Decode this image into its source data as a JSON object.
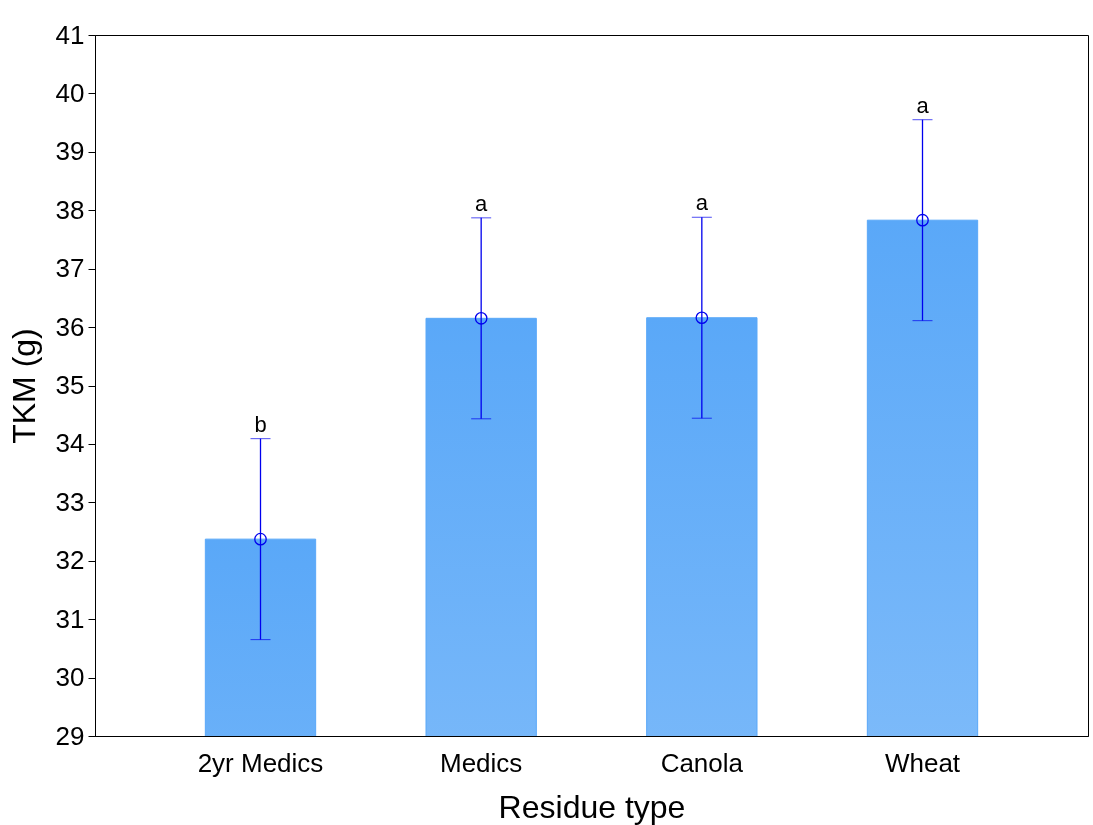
{
  "chart_data": {
    "type": "bar",
    "xlabel": "Residue type",
    "ylabel": "TKM (g)",
    "categories": [
      "2yr Medics",
      "Medics",
      "Canola",
      "Wheat"
    ],
    "series": [
      {
        "color": "#5aa8f8",
        "values": [
          32.37,
          36.15,
          36.16,
          37.83
        ]
      },
      {
        "type": "scatter",
        "color": "#0000ee",
        "marker": "circle",
        "x": [
          "2yr Medics",
          "Medics",
          "Canola",
          "Wheat"
        ],
        "values": [
          32.37,
          36.15,
          36.16,
          37.83
        ],
        "errors": [
          1.72,
          1.72,
          1.72,
          1.72
        ]
      }
    ],
    "ylim": [
      29,
      41
    ],
    "yticks": [
      29,
      30,
      31,
      32,
      33,
      34,
      35,
      36,
      37,
      38,
      39,
      40,
      41
    ],
    "grid": false,
    "annotations": [
      "b",
      "a",
      "a",
      "a"
    ]
  }
}
